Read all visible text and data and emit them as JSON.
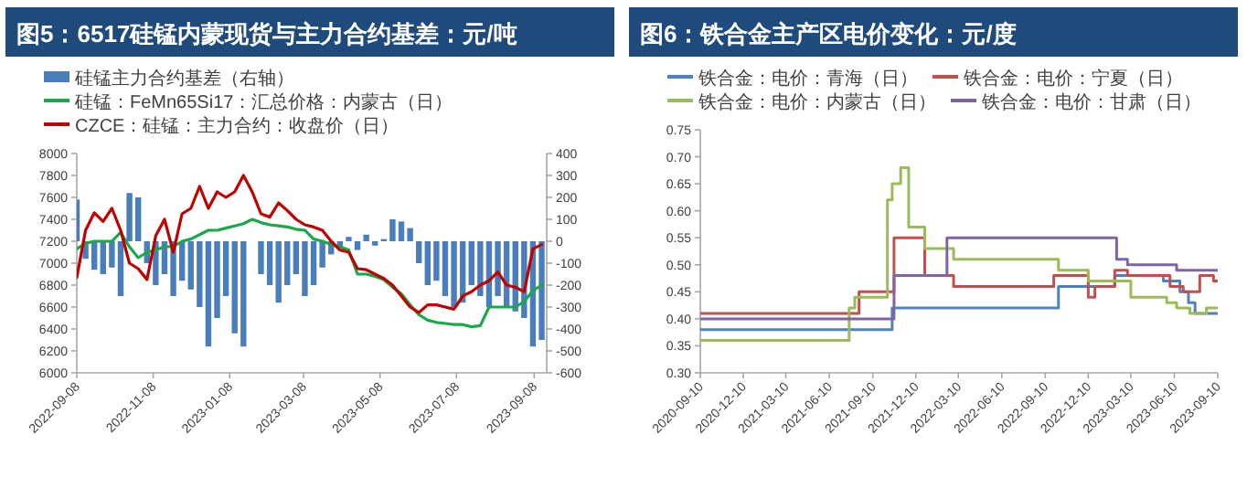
{
  "chart_data": [
    {
      "type": "line",
      "title": "图5：6517硅锰内蒙现货与主力合约基差：元/吨",
      "legend": "top",
      "x": [
        "2022-09-08",
        "2022-09-15",
        "2022-09-22",
        "2022-09-29",
        "2022-10-06",
        "2022-10-13",
        "2022-10-20",
        "2022-10-27",
        "2022-11-03",
        "2022-11-10",
        "2022-11-17",
        "2022-11-24",
        "2022-12-01",
        "2022-12-08",
        "2022-12-15",
        "2022-12-22",
        "2022-12-29",
        "2023-01-05",
        "2023-01-12",
        "2023-01-19",
        "2023-01-26",
        "2023-02-02",
        "2023-02-09",
        "2023-02-16",
        "2023-02-23",
        "2023-03-02",
        "2023-03-09",
        "2023-03-16",
        "2023-03-23",
        "2023-03-30",
        "2023-04-06",
        "2023-04-13",
        "2023-04-20",
        "2023-04-27",
        "2023-05-04",
        "2023-05-11",
        "2023-05-18",
        "2023-05-25",
        "2023-06-01",
        "2023-06-08",
        "2023-06-15",
        "2023-06-22",
        "2023-06-29",
        "2023-07-06",
        "2023-07-13",
        "2023-07-20",
        "2023-07-27",
        "2023-08-03",
        "2023-08-10",
        "2023-08-17",
        "2023-08-24",
        "2023-08-31",
        "2023-09-07",
        "2023-09-14"
      ],
      "xlim": [
        "2022-09-08",
        "2023-09-18"
      ],
      "xticks": [
        "2022-09-08",
        "2022-11-08",
        "2023-01-08",
        "2023-03-08",
        "2023-05-08",
        "2023-07-08",
        "2023-09-08"
      ],
      "ylim": [
        6000,
        8000
      ],
      "yticks": [
        6000,
        6200,
        6400,
        6600,
        6800,
        7000,
        7200,
        7400,
        7600,
        7800,
        8000
      ],
      "y2lim": [
        -600,
        400
      ],
      "y2ticks": [
        -600,
        -500,
        -400,
        -300,
        -200,
        -100,
        0,
        100,
        200,
        300,
        400
      ],
      "series": [
        {
          "name": "硅锰主力合约基差（右轴）",
          "type": "bar",
          "axis": "y2",
          "color": "#4a7ebb",
          "values": [
            190,
            -80,
            -130,
            -150,
            -120,
            -250,
            220,
            200,
            -100,
            -200,
            -150,
            -250,
            -180,
            -220,
            -300,
            -480,
            -350,
            -250,
            -420,
            -480,
            null,
            -150,
            -200,
            -280,
            -200,
            -150,
            -250,
            -200,
            -120,
            -60,
            -30,
            20,
            -40,
            30,
            -20,
            10,
            100,
            90,
            60,
            -100,
            -200,
            -180,
            -250,
            -300,
            -280,
            -200,
            -250,
            -300,
            -250,
            -300,
            -320,
            -350,
            -480,
            -450
          ]
        },
        {
          "name": "硅锰：FeMn65Si17：汇总价格：内蒙古（日）",
          "color": "#1aa84a",
          "values": [
            7130,
            7180,
            7200,
            7200,
            7200,
            7280,
            7150,
            7050,
            7100,
            7120,
            7150,
            7150,
            7200,
            7220,
            7260,
            7300,
            7300,
            7320,
            7340,
            7360,
            7400,
            7370,
            7350,
            7340,
            7330,
            7310,
            7300,
            7220,
            7200,
            7170,
            7150,
            7120,
            6900,
            6900,
            6880,
            6850,
            6780,
            6720,
            6620,
            6530,
            6480,
            6460,
            6450,
            6440,
            6440,
            6420,
            6430,
            6600,
            6600,
            6600,
            6600,
            6650,
            6750,
            6800
          ]
        },
        {
          "name": "CZCE：硅锰：主力合约：收盘价（日）",
          "color": "#c00000",
          "values": [
            6870,
            7300,
            7460,
            7380,
            7500,
            7300,
            7000,
            6950,
            6850,
            7250,
            7400,
            7100,
            7450,
            7500,
            7700,
            7500,
            7650,
            7600,
            7650,
            7800,
            7650,
            7450,
            7420,
            7550,
            7480,
            7400,
            7350,
            7330,
            7300,
            7200,
            7120,
            7100,
            6950,
            6940,
            6900,
            6860,
            6800,
            6700,
            6600,
            6550,
            6620,
            6620,
            6600,
            6580,
            6700,
            6740,
            6800,
            6840,
            6920,
            6800,
            6780,
            6740,
            7130,
            7170
          ]
        }
      ]
    },
    {
      "type": "step",
      "title": "图6：铁合金主产区电价变化：元/度",
      "legend": "top",
      "xlim": [
        "2020-09-10",
        "2023-09-10"
      ],
      "xticks": [
        "2020-09-10",
        "2020-12-10",
        "2021-03-10",
        "2021-06-10",
        "2021-09-10",
        "2021-12-10",
        "2022-03-10",
        "2022-06-10",
        "2022-09-10",
        "2022-12-10",
        "2023-03-10",
        "2023-06-10",
        "2023-09-10"
      ],
      "ylim": [
        0.3,
        0.75
      ],
      "yticks": [
        {
          "value": 0.3,
          "label": "0.30"
        },
        {
          "value": 0.35,
          "label": "0.35"
        },
        {
          "value": 0.4,
          "label": "0.40"
        },
        {
          "value": 0.45,
          "label": "0.45"
        },
        {
          "value": 0.5,
          "label": "0.50"
        },
        {
          "value": 0.55,
          "label": "0.55"
        },
        {
          "value": 0.6,
          "label": "0.60"
        },
        {
          "value": 0.65,
          "label": "0.65"
        },
        {
          "value": 0.7,
          "label": "0.70"
        },
        {
          "value": 0.75,
          "label": "0.75"
        }
      ],
      "series": [
        {
          "name": "铁合金：电价：青海（日）",
          "color": "#4f81bd",
          "x": [
            "2020-09-10",
            "2021-10-21",
            "2022-10-08",
            "2023-02-04",
            "2023-05-18",
            "2023-06-22",
            "2023-07-10",
            "2023-07-24",
            "2023-09-10"
          ],
          "values": [
            0.38,
            0.42,
            0.46,
            0.48,
            0.47,
            0.45,
            0.43,
            0.41,
            0.41
          ]
        },
        {
          "name": "铁合金：电价：宁夏（日）",
          "color": "#c0504d",
          "x": [
            "2020-09-10",
            "2021-08-12",
            "2021-10-25",
            "2021-12-29",
            "2022-02-28",
            "2022-09-28",
            "2022-12-10",
            "2022-12-24",
            "2023-02-04",
            "2023-03-03",
            "2023-06-01",
            "2023-06-29",
            "2023-08-03",
            "2023-09-01",
            "2023-09-10"
          ],
          "values": [
            0.41,
            0.45,
            0.55,
            0.48,
            0.46,
            0.48,
            0.44,
            0.46,
            0.49,
            0.48,
            0.46,
            0.45,
            0.48,
            0.47,
            0.47
          ]
        },
        {
          "name": "铁合金：电价：内蒙古（日）",
          "color": "#9bbb59",
          "x": [
            "2020-09-10",
            "2021-07-22",
            "2021-08-03",
            "2021-10-11",
            "2021-10-21",
            "2021-11-08",
            "2021-11-25",
            "2021-12-29",
            "2022-02-28",
            "2022-10-08",
            "2022-12-10",
            "2023-03-10",
            "2023-05-25",
            "2023-06-15",
            "2023-07-13",
            "2023-08-17",
            "2023-09-10"
          ],
          "values": [
            0.36,
            0.42,
            0.44,
            0.62,
            0.65,
            0.68,
            0.57,
            0.53,
            0.51,
            0.49,
            0.47,
            0.44,
            0.43,
            0.42,
            0.41,
            0.42,
            0.42
          ]
        },
        {
          "name": "铁合金：电价：甘肃（日）",
          "color": "#8064a2",
          "x": [
            "2020-09-10",
            "2021-10-25",
            "2022-02-14",
            "2023-02-08",
            "2023-03-03",
            "2023-06-15",
            "2023-09-10"
          ],
          "values": [
            0.4,
            0.48,
            0.55,
            0.51,
            0.5,
            0.49,
            0.49
          ]
        }
      ]
    }
  ]
}
